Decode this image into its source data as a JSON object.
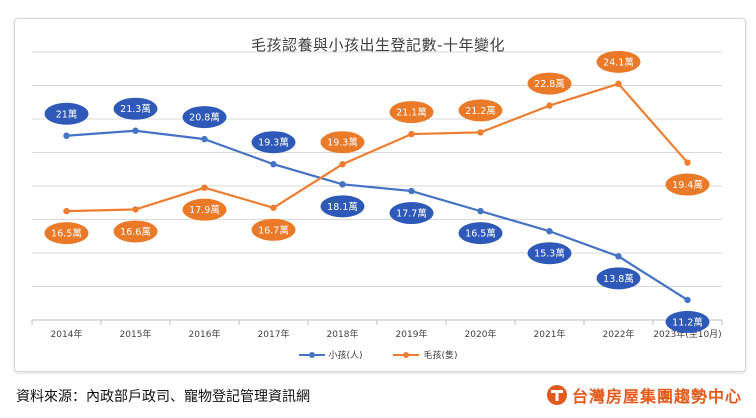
{
  "chart_data": {
    "type": "line",
    "title": "毛孩認養與小孩出生登記數-十年變化",
    "categories": [
      "2014年",
      "2015年",
      "2016年",
      "2017年",
      "2018年",
      "2019年",
      "2020年",
      "2021年",
      "2022年",
      "2023年(至10月)"
    ],
    "ylim": [
      10,
      26
    ],
    "grid": true,
    "legend_position": "bottom",
    "series": [
      {
        "name": "小孩(人)",
        "color": "#4472c4",
        "label_bg": "#2e59b8",
        "values": [
          21,
          21.3,
          20.8,
          19.3,
          18.1,
          17.7,
          16.5,
          15.3,
          13.8,
          11.2
        ],
        "labels": [
          "21萬",
          "21.3萬",
          "20.8萬",
          "19.3萬",
          "18.1萬",
          "17.7萬",
          "16.5萬",
          "15.3萬",
          "13.8萬",
          "11.2萬"
        ]
      },
      {
        "name": "毛孩(隻)",
        "color": "#ed7d31",
        "label_bg": "#ea7a28",
        "values": [
          16.5,
          16.6,
          17.9,
          16.7,
          19.3,
          21.1,
          21.2,
          22.8,
          24.1,
          19.4
        ],
        "labels": [
          "16.5萬",
          "16.6萬",
          "17.9萬",
          "16.7萬",
          "19.3萬",
          "21.1萬",
          "21.2萬",
          "22.8萬",
          "24.1萬",
          "19.4萬"
        ]
      }
    ]
  },
  "source_text": "資料來源：內政部戶政司、寵物登記管理資訊網",
  "brand": {
    "name": "台灣房屋集團趨勢中心",
    "color": "#e35a1c"
  }
}
